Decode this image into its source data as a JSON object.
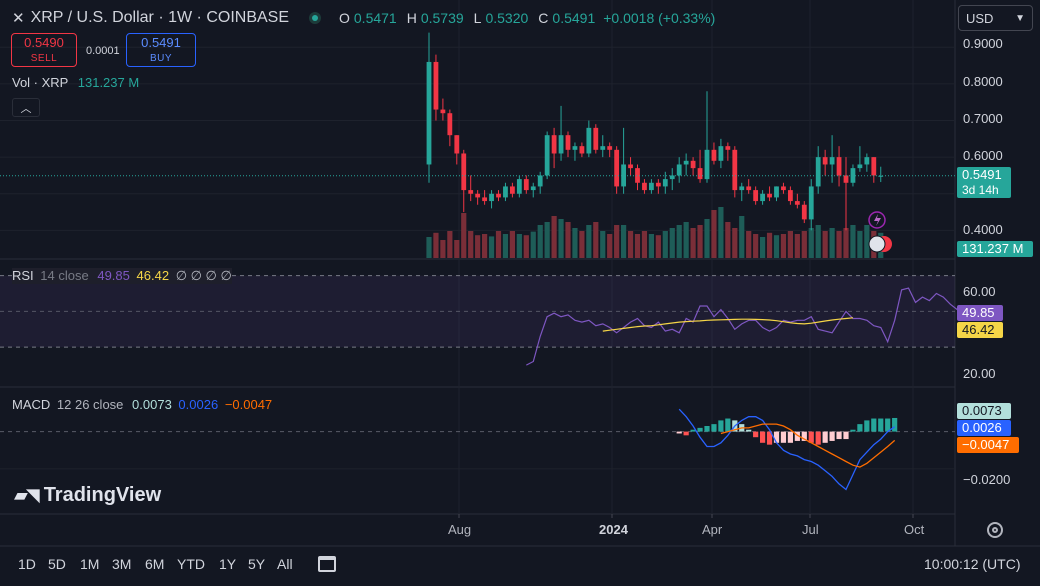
{
  "header": {
    "close_icon": "x-icon",
    "symbol_title": "XRP / U.S. Dollar · 1W · COINBASE",
    "status_dot_color": "#26a69a",
    "ohlc": {
      "o_label": "O",
      "o": "0.5471",
      "h_label": "H",
      "h": "0.5739",
      "l_label": "L",
      "l": "0.5320",
      "c_label": "C",
      "c": "0.5491",
      "change": "+0.0018 (+0.33%)"
    }
  },
  "trade": {
    "sell_price": "0.5490",
    "sell_label": "SELL",
    "spread": "0.0001",
    "buy_price": "0.5491",
    "buy_label": "BUY"
  },
  "volume_legend": {
    "label": "Vol · XRP",
    "value": "131.237 M"
  },
  "currency_select": "USD",
  "price_axis": {
    "ticks": [
      "0.9000",
      "0.8000",
      "0.7000",
      "0.6000",
      "0.4000"
    ],
    "last_price": "0.5491",
    "countdown": "3d 14h",
    "volume_tag": "131.237 M"
  },
  "rsi": {
    "label": "RSI",
    "params": "14 close",
    "value": "49.85",
    "ma_value": "46.42",
    "extra": "∅ ∅ ∅ ∅",
    "ticks": [
      "60.00",
      "20.00"
    ],
    "tag_rsi": "49.85",
    "tag_ma": "46.42"
  },
  "macd": {
    "label": "MACD",
    "params": "12 26 close",
    "hist": "0.0073",
    "macd": "0.0026",
    "signal": "−0.0047",
    "tick": "−0.0200",
    "tag_hist": "0.0073",
    "tag_macd": "0.0026",
    "tag_signal": "−0.0047"
  },
  "time_axis": {
    "labels": [
      "Aug",
      "2024",
      "Apr",
      "Jul",
      "Oct"
    ]
  },
  "logo": "TradingView",
  "toolbar": {
    "ranges": [
      "1D",
      "5D",
      "1M",
      "3M",
      "6M",
      "YTD",
      "1Y",
      "5Y",
      "All"
    ],
    "calendar_icon": "calendar-range-icon",
    "clock": "10:00:12 (UTC)",
    "settings_icon": "gear-icon"
  },
  "colors": {
    "up": "#26a69a",
    "down": "#f23645",
    "rsi": "#7e57c2",
    "rsi_ma": "#f5d547",
    "macd": "#2962ff",
    "signal": "#ff6d00",
    "background": "#131722"
  },
  "chart_data": {
    "type": "candlestick",
    "title": "XRP / U.S. Dollar · 1W · COINBASE",
    "price_axis_range": [
      0.33,
      0.95
    ],
    "x_labels": [
      "Aug",
      "2024",
      "Apr",
      "Jul",
      "Oct"
    ],
    "candles": [
      {
        "o": 0.58,
        "h": 0.94,
        "l": 0.53,
        "c": 0.86
      },
      {
        "o": 0.86,
        "h": 0.88,
        "l": 0.7,
        "c": 0.73
      },
      {
        "o": 0.73,
        "h": 0.76,
        "l": 0.7,
        "c": 0.72
      },
      {
        "o": 0.72,
        "h": 0.73,
        "l": 0.63,
        "c": 0.66
      },
      {
        "o": 0.66,
        "h": 0.66,
        "l": 0.58,
        "c": 0.61
      },
      {
        "o": 0.61,
        "h": 0.62,
        "l": 0.45,
        "c": 0.51
      },
      {
        "o": 0.51,
        "h": 0.55,
        "l": 0.48,
        "c": 0.5
      },
      {
        "o": 0.5,
        "h": 0.51,
        "l": 0.47,
        "c": 0.49
      },
      {
        "o": 0.49,
        "h": 0.51,
        "l": 0.47,
        "c": 0.48
      },
      {
        "o": 0.48,
        "h": 0.51,
        "l": 0.46,
        "c": 0.5
      },
      {
        "o": 0.5,
        "h": 0.51,
        "l": 0.48,
        "c": 0.49
      },
      {
        "o": 0.49,
        "h": 0.53,
        "l": 0.48,
        "c": 0.52
      },
      {
        "o": 0.52,
        "h": 0.53,
        "l": 0.49,
        "c": 0.5
      },
      {
        "o": 0.5,
        "h": 0.55,
        "l": 0.49,
        "c": 0.54
      },
      {
        "o": 0.54,
        "h": 0.55,
        "l": 0.5,
        "c": 0.51
      },
      {
        "o": 0.51,
        "h": 0.53,
        "l": 0.49,
        "c": 0.52
      },
      {
        "o": 0.52,
        "h": 0.56,
        "l": 0.5,
        "c": 0.55
      },
      {
        "o": 0.55,
        "h": 0.67,
        "l": 0.54,
        "c": 0.66
      },
      {
        "o": 0.66,
        "h": 0.68,
        "l": 0.57,
        "c": 0.61
      },
      {
        "o": 0.61,
        "h": 0.74,
        "l": 0.59,
        "c": 0.66
      },
      {
        "o": 0.66,
        "h": 0.67,
        "l": 0.6,
        "c": 0.62
      },
      {
        "o": 0.62,
        "h": 0.64,
        "l": 0.59,
        "c": 0.63
      },
      {
        "o": 0.63,
        "h": 0.64,
        "l": 0.6,
        "c": 0.61
      },
      {
        "o": 0.61,
        "h": 0.7,
        "l": 0.6,
        "c": 0.68
      },
      {
        "o": 0.68,
        "h": 0.69,
        "l": 0.61,
        "c": 0.62
      },
      {
        "o": 0.62,
        "h": 0.66,
        "l": 0.6,
        "c": 0.63
      },
      {
        "o": 0.63,
        "h": 0.64,
        "l": 0.6,
        "c": 0.62
      },
      {
        "o": 0.62,
        "h": 0.63,
        "l": 0.5,
        "c": 0.52
      },
      {
        "o": 0.52,
        "h": 0.68,
        "l": 0.5,
        "c": 0.58
      },
      {
        "o": 0.58,
        "h": 0.6,
        "l": 0.55,
        "c": 0.57
      },
      {
        "o": 0.57,
        "h": 0.58,
        "l": 0.51,
        "c": 0.53
      },
      {
        "o": 0.53,
        "h": 0.54,
        "l": 0.5,
        "c": 0.51
      },
      {
        "o": 0.51,
        "h": 0.54,
        "l": 0.5,
        "c": 0.53
      },
      {
        "o": 0.53,
        "h": 0.54,
        "l": 0.5,
        "c": 0.52
      },
      {
        "o": 0.52,
        "h": 0.56,
        "l": 0.5,
        "c": 0.54
      },
      {
        "o": 0.54,
        "h": 0.57,
        "l": 0.51,
        "c": 0.55
      },
      {
        "o": 0.55,
        "h": 0.6,
        "l": 0.53,
        "c": 0.58
      },
      {
        "o": 0.58,
        "h": 0.61,
        "l": 0.55,
        "c": 0.59
      },
      {
        "o": 0.59,
        "h": 0.6,
        "l": 0.55,
        "c": 0.57
      },
      {
        "o": 0.57,
        "h": 0.62,
        "l": 0.53,
        "c": 0.54
      },
      {
        "o": 0.54,
        "h": 0.78,
        "l": 0.53,
        "c": 0.62
      },
      {
        "o": 0.62,
        "h": 0.64,
        "l": 0.58,
        "c": 0.59
      },
      {
        "o": 0.59,
        "h": 0.65,
        "l": 0.57,
        "c": 0.63
      },
      {
        "o": 0.63,
        "h": 0.64,
        "l": 0.59,
        "c": 0.62
      },
      {
        "o": 0.62,
        "h": 0.63,
        "l": 0.49,
        "c": 0.51
      },
      {
        "o": 0.51,
        "h": 0.53,
        "l": 0.48,
        "c": 0.52
      },
      {
        "o": 0.52,
        "h": 0.54,
        "l": 0.5,
        "c": 0.51
      },
      {
        "o": 0.51,
        "h": 0.52,
        "l": 0.47,
        "c": 0.48
      },
      {
        "o": 0.48,
        "h": 0.51,
        "l": 0.47,
        "c": 0.5
      },
      {
        "o": 0.5,
        "h": 0.52,
        "l": 0.48,
        "c": 0.49
      },
      {
        "o": 0.49,
        "h": 0.52,
        "l": 0.48,
        "c": 0.52
      },
      {
        "o": 0.52,
        "h": 0.53,
        "l": 0.5,
        "c": 0.51
      },
      {
        "o": 0.51,
        "h": 0.52,
        "l": 0.47,
        "c": 0.48
      },
      {
        "o": 0.48,
        "h": 0.5,
        "l": 0.46,
        "c": 0.47
      },
      {
        "o": 0.47,
        "h": 0.48,
        "l": 0.42,
        "c": 0.43
      },
      {
        "o": 0.43,
        "h": 0.54,
        "l": 0.4,
        "c": 0.52
      },
      {
        "o": 0.52,
        "h": 0.63,
        "l": 0.5,
        "c": 0.6
      },
      {
        "o": 0.6,
        "h": 0.62,
        "l": 0.55,
        "c": 0.58
      },
      {
        "o": 0.58,
        "h": 0.66,
        "l": 0.53,
        "c": 0.6
      },
      {
        "o": 0.6,
        "h": 0.63,
        "l": 0.52,
        "c": 0.55
      },
      {
        "o": 0.55,
        "h": 0.6,
        "l": 0.4,
        "c": 0.53
      },
      {
        "o": 0.53,
        "h": 0.58,
        "l": 0.52,
        "c": 0.57
      },
      {
        "o": 0.57,
        "h": 0.63,
        "l": 0.56,
        "c": 0.58
      },
      {
        "o": 0.58,
        "h": 0.61,
        "l": 0.56,
        "c": 0.6
      },
      {
        "o": 0.6,
        "h": 0.6,
        "l": 0.53,
        "c": 0.55
      },
      {
        "o": 0.5471,
        "h": 0.5739,
        "l": 0.532,
        "c": 0.5491
      }
    ],
    "volume": [
      0.35,
      0.42,
      0.3,
      0.45,
      0.3,
      0.75,
      0.45,
      0.38,
      0.4,
      0.36,
      0.45,
      0.4,
      0.45,
      0.4,
      0.38,
      0.44,
      0.55,
      0.6,
      0.7,
      0.65,
      0.6,
      0.5,
      0.45,
      0.55,
      0.6,
      0.45,
      0.4,
      0.55,
      0.55,
      0.45,
      0.4,
      0.45,
      0.4,
      0.38,
      0.45,
      0.5,
      0.55,
      0.6,
      0.5,
      0.55,
      0.65,
      0.8,
      0.85,
      0.6,
      0.5,
      0.7,
      0.45,
      0.4,
      0.35,
      0.42,
      0.38,
      0.4,
      0.45,
      0.4,
      0.45,
      0.5,
      0.55,
      0.45,
      0.5,
      0.45,
      0.5,
      0.55,
      0.45,
      0.55,
      0.45,
      0.42
    ],
    "rsi": {
      "range": [
        15,
        72
      ],
      "start_index": 14,
      "values": [
        20,
        22,
        36,
        47,
        49,
        47,
        48,
        45,
        44,
        45,
        42,
        43,
        41,
        38,
        41,
        44,
        46,
        42,
        41,
        44,
        39,
        40,
        38,
        46,
        44,
        53,
        53,
        47,
        51,
        46,
        40,
        43,
        45,
        45,
        41,
        39,
        41,
        45,
        44,
        45,
        45,
        47,
        40,
        39,
        38,
        44,
        50,
        46,
        46,
        45,
        42,
        41,
        33,
        45,
        62,
        63,
        55,
        58,
        56,
        60,
        58,
        54,
        51,
        50
      ]
    },
    "rsi_ma": {
      "start_index": 25,
      "values": [
        39,
        39.5,
        40,
        40.5,
        41,
        41.5,
        41.8,
        42,
        42.5,
        43,
        43.5,
        44,
        44.3,
        44.5,
        44.7,
        45,
        45.2,
        45.3,
        45.4,
        45.5,
        45.6,
        45.6,
        45.5,
        45.4,
        45.2,
        44.8,
        44.2,
        43.6,
        43.2,
        43,
        43.4,
        44,
        44.6,
        45.2,
        45.6,
        46,
        46.42
      ]
    },
    "macd_range": [
      -0.042,
      0.018
    ],
    "macd_start_index": 36,
    "histogram": [
      -0.001,
      -0.002,
      0.001,
      0.002,
      0.003,
      0.004,
      0.006,
      0.007,
      0.006,
      0.004,
      0.001,
      -0.003,
      -0.006,
      -0.007,
      -0.006,
      -0.006,
      -0.006,
      -0.005,
      -0.005,
      -0.006,
      -0.007,
      -0.006,
      -0.005,
      -0.004,
      -0.004,
      0.001,
      0.004,
      0.006,
      0.007,
      0.007,
      0.007,
      0.0073
    ],
    "macd_line": [
      0.012,
      0.008,
      0.003,
      -0.003,
      -0.008,
      -0.008,
      -0.006,
      -0.002,
      0.003,
      0.006,
      0.008,
      0.008,
      0.006,
      0.001,
      -0.006,
      -0.01,
      -0.012,
      -0.013,
      -0.015,
      -0.016,
      -0.018,
      -0.021,
      -0.024,
      -0.028,
      -0.031,
      -0.023,
      -0.015,
      -0.011,
      -0.007,
      -0.004,
      0.0,
      0.0026
    ],
    "signal_line": [
      null,
      null,
      null,
      null,
      null,
      null,
      -0.001,
      0.0,
      0.001,
      0.002,
      0.002,
      0.003,
      0.004,
      0.004,
      0.004,
      0.003,
      0.001,
      -0.002,
      -0.004,
      -0.006,
      -0.008,
      -0.01,
      -0.012,
      -0.014,
      -0.016,
      -0.018,
      -0.019,
      -0.017,
      -0.014,
      -0.011,
      -0.008,
      -0.0047
    ]
  }
}
